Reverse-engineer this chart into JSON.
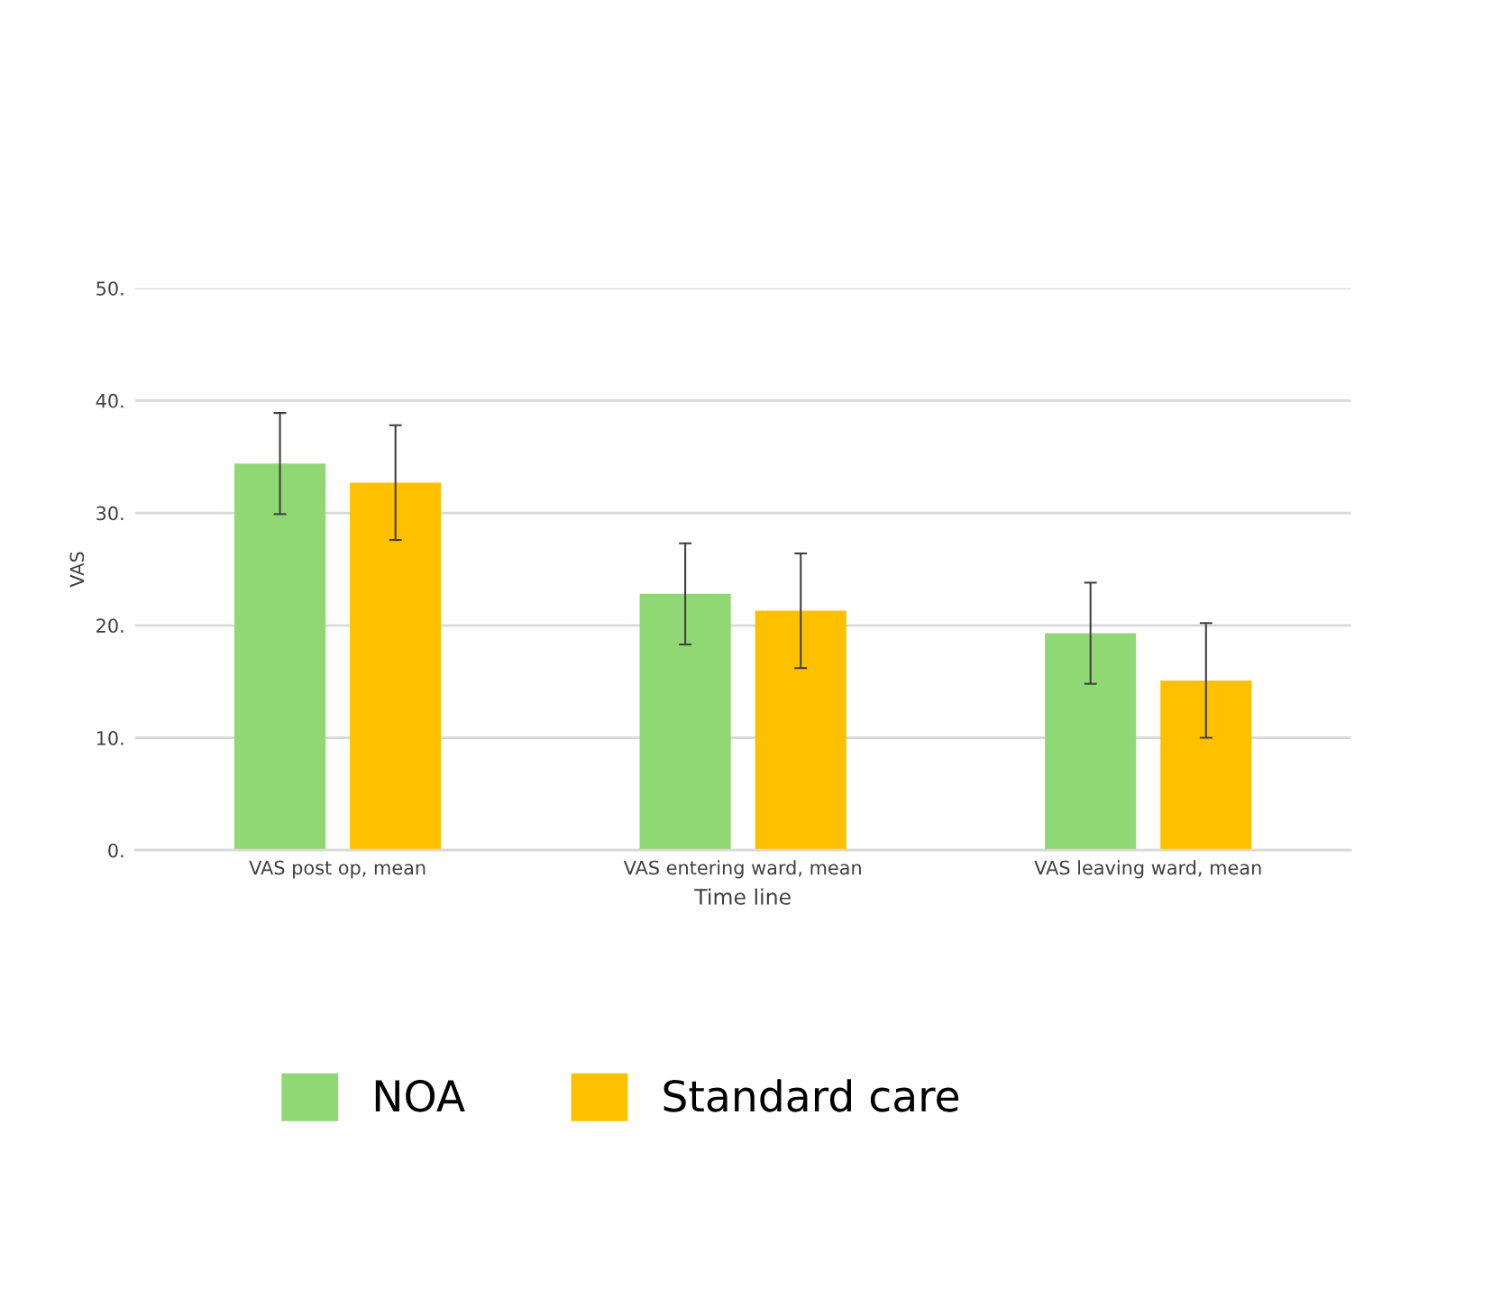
{
  "chart_data": {
    "type": "bar",
    "xlabel": "Time line",
    "ylabel": "VAS",
    "categories": [
      "VAS post op, mean",
      "VAS entering ward, mean",
      "VAS leaving ward, mean"
    ],
    "series": [
      {
        "name": "NOA",
        "color": "#8fd873",
        "values": [
          34.4,
          22.8,
          19.3
        ],
        "errors": [
          4.5,
          4.5,
          4.5
        ]
      },
      {
        "name": "Standard care",
        "color": "#ffc000",
        "values": [
          32.7,
          21.3,
          15.1
        ],
        "errors": [
          5.1,
          5.1,
          5.1
        ]
      }
    ],
    "ylim": [
      0,
      50
    ],
    "yticks": [
      {
        "value": 0,
        "label": "0."
      },
      {
        "value": 10,
        "label": "10."
      },
      {
        "value": 20,
        "label": "20."
      },
      {
        "value": 30,
        "label": "30."
      },
      {
        "value": 40,
        "label": "40."
      },
      {
        "value": 50,
        "label": "50."
      }
    ],
    "grid": "y",
    "legend": "bottom"
  }
}
